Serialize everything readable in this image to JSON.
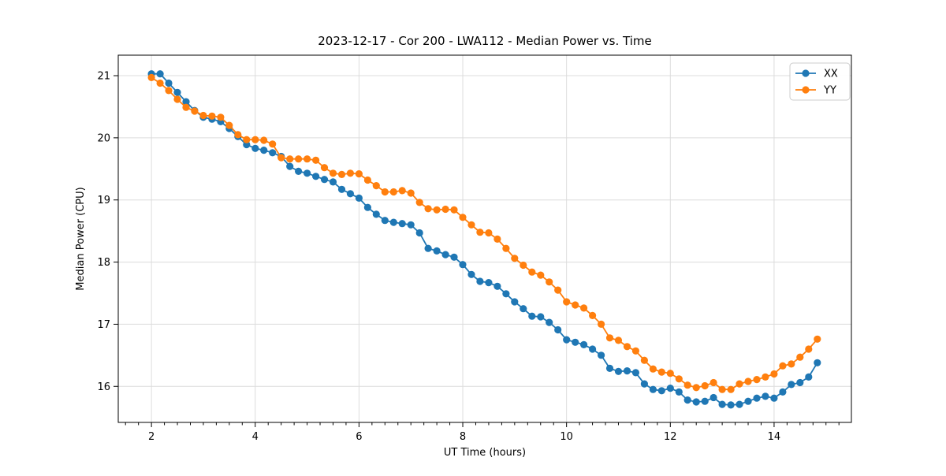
{
  "chart_data": {
    "type": "line",
    "title": "2023-12-17 - Cor 200 - LWA112 - Median Power vs. Time",
    "xlabel": "UT Time (hours)",
    "ylabel": "Median Power (CPU)",
    "xlim": [
      1.36,
      15.49
    ],
    "ylim": [
      15.42,
      21.33
    ],
    "xticks": [
      2,
      4,
      6,
      8,
      10,
      12,
      14
    ],
    "x_minor_tick_step": 0.25,
    "yticks": [
      16,
      17,
      18,
      19,
      20,
      21
    ],
    "grid": "major-only light gray",
    "legend_position": "upper right",
    "x": [
      2,
      2.167,
      2.333,
      2.5,
      2.667,
      2.833,
      3,
      3.167,
      3.333,
      3.5,
      3.667,
      3.833,
      4,
      4.167,
      4.333,
      4.5,
      4.667,
      4.833,
      5,
      5.167,
      5.333,
      5.5,
      5.667,
      5.833,
      6,
      6.167,
      6.333,
      6.5,
      6.667,
      6.833,
      7,
      7.167,
      7.333,
      7.5,
      7.667,
      7.833,
      8,
      8.167,
      8.333,
      8.5,
      8.667,
      8.833,
      9,
      9.167,
      9.333,
      9.5,
      9.667,
      9.833,
      10,
      10.167,
      10.333,
      10.5,
      10.667,
      10.833,
      11,
      11.167,
      11.333,
      11.5,
      11.667,
      11.833,
      12,
      12.167,
      12.333,
      12.5,
      12.667,
      12.833,
      13,
      13.167,
      13.333,
      13.5,
      13.667,
      13.833,
      14,
      14.167,
      14.333,
      14.5,
      14.667,
      14.833
    ],
    "series": [
      {
        "name": "XX",
        "color": "#1f77b4",
        "values": [
          21.03,
          21.03,
          20.88,
          20.73,
          20.58,
          20.44,
          20.33,
          20.3,
          20.26,
          20.15,
          20.02,
          19.89,
          19.83,
          19.8,
          19.76,
          19.7,
          19.54,
          19.46,
          19.43,
          19.38,
          19.33,
          19.29,
          19.17,
          19.1,
          19.03,
          18.88,
          18.77,
          18.67,
          18.64,
          18.62,
          18.6,
          18.47,
          18.22,
          18.18,
          18.12,
          18.08,
          17.96,
          17.8,
          17.69,
          17.67,
          17.61,
          17.49,
          17.36,
          17.25,
          17.13,
          17.12,
          17.03,
          16.91,
          16.75,
          16.71,
          16.67,
          16.6,
          16.5,
          16.29,
          16.24,
          16.25,
          16.22,
          16.04,
          15.95,
          15.93,
          15.97,
          15.91,
          15.78,
          15.75,
          15.76,
          15.82,
          15.71,
          15.7,
          15.71,
          15.76,
          15.81,
          15.84,
          15.81,
          15.91,
          16.03,
          16.06,
          16.15,
          16.38
        ]
      },
      {
        "name": "YY",
        "color": "#ff7f0e",
        "values": [
          20.97,
          20.88,
          20.76,
          20.62,
          20.49,
          20.43,
          20.36,
          20.35,
          20.33,
          20.2,
          20.05,
          19.97,
          19.97,
          19.96,
          19.9,
          19.68,
          19.66,
          19.66,
          19.66,
          19.64,
          19.52,
          19.43,
          19.41,
          19.43,
          19.42,
          19.32,
          19.23,
          19.13,
          19.13,
          19.15,
          19.11,
          18.96,
          18.86,
          18.84,
          18.85,
          18.84,
          18.72,
          18.6,
          18.48,
          18.47,
          18.37,
          18.22,
          18.06,
          17.95,
          17.84,
          17.79,
          17.68,
          17.55,
          17.36,
          17.31,
          17.26,
          17.14,
          17.0,
          16.78,
          16.74,
          16.64,
          16.57,
          16.42,
          16.28,
          16.23,
          16.21,
          16.12,
          16.02,
          15.98,
          16.01,
          16.06,
          15.95,
          15.95,
          16.04,
          16.08,
          16.11,
          16.15,
          16.2,
          16.33,
          16.36,
          16.47,
          16.6,
          16.76
        ]
      }
    ]
  }
}
